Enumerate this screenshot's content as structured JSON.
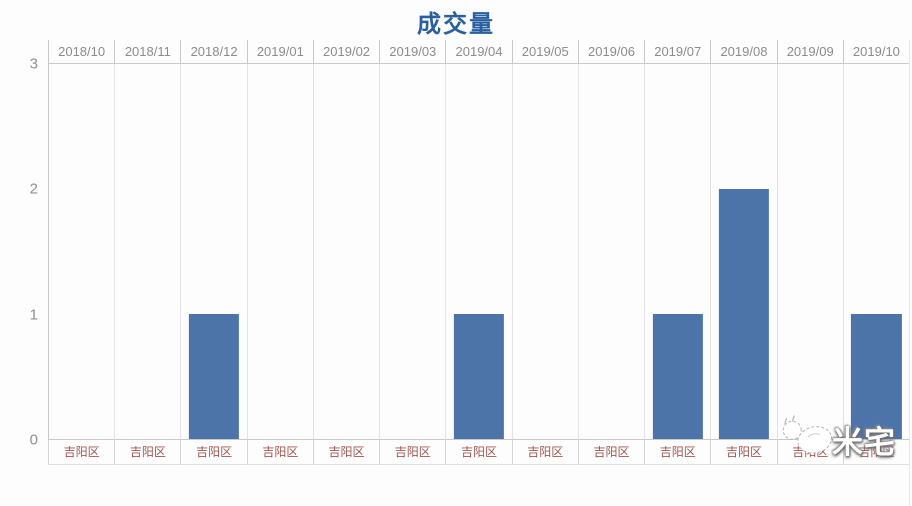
{
  "page": {
    "title": "成交量"
  },
  "chart_data": {
    "type": "bar",
    "title": "成交量",
    "categories": [
      "2018/10",
      "2018/11",
      "2018/12",
      "2019/01",
      "2019/02",
      "2019/03",
      "2019/04",
      "2019/05",
      "2019/06",
      "2019/07",
      "2019/08",
      "2019/09",
      "2019/10"
    ],
    "values": [
      0,
      0,
      1,
      0,
      0,
      0,
      1,
      0,
      0,
      1,
      2,
      0,
      1
    ],
    "group_labels": [
      "吉阳区",
      "吉阳区",
      "吉阳区",
      "吉阳区",
      "吉阳区",
      "吉阳区",
      "吉阳区",
      "吉阳区",
      "吉阳区",
      "吉阳区",
      "吉阳区",
      "吉阳区",
      "吉阳区"
    ],
    "xlabel": "",
    "ylabel": "",
    "ylim": [
      0,
      3
    ],
    "yticks": [
      0,
      1,
      2,
      3
    ],
    "legend": "none",
    "grid": "vertical-column-separators-only",
    "category_axis_position": "top",
    "bar_color": "#4d74a8",
    "title_color": "#2a5fa0",
    "category_label_color": "#8c8c8c",
    "group_label_color": "#a3564e",
    "tick_label_color": "#909090"
  },
  "watermark": {
    "text": "米宅",
    "icon": "mizhai-bird-logo"
  }
}
